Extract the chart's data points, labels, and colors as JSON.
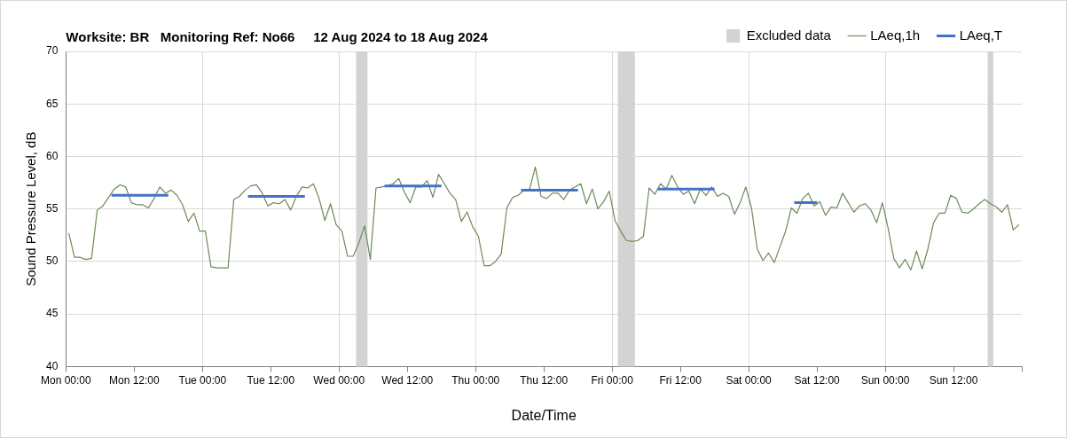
{
  "chart_data": {
    "type": "line",
    "title": "Worksite: BR   Monitoring Ref: No66     12 Aug 2024 to 18 Aug 2024",
    "xlabel": "Date/Time",
    "ylabel": "Sound Pressure Level, dB",
    "xlim": [
      "2024-08-12T00:00",
      "2024-08-19T00:00"
    ],
    "ylim": [
      40,
      70
    ],
    "xticks": [
      {
        "value": "2024-08-12T00:00",
        "label": "Mon 00:00"
      },
      {
        "value": "2024-08-12T12:00",
        "label": "Mon 12:00"
      },
      {
        "value": "2024-08-13T00:00",
        "label": "Tue 00:00"
      },
      {
        "value": "2024-08-13T12:00",
        "label": "Tue 12:00"
      },
      {
        "value": "2024-08-14T00:00",
        "label": "Wed 00:00"
      },
      {
        "value": "2024-08-14T12:00",
        "label": "Wed 12:00"
      },
      {
        "value": "2024-08-15T00:00",
        "label": "Thu 00:00"
      },
      {
        "value": "2024-08-15T12:00",
        "label": "Thu 12:00"
      },
      {
        "value": "2024-08-16T00:00",
        "label": "Fri 00:00"
      },
      {
        "value": "2024-08-16T12:00",
        "label": "Fri 12:00"
      },
      {
        "value": "2024-08-17T00:00",
        "label": "Sat 00:00"
      },
      {
        "value": "2024-08-17T12:00",
        "label": "Sat 12:00"
      },
      {
        "value": "2024-08-18T00:00",
        "label": "Sun 00:00"
      },
      {
        "value": "2024-08-18T12:00",
        "label": "Sun 12:00"
      },
      {
        "value": "2024-08-19T00:00",
        "label": null
      }
    ],
    "yticks": [
      40,
      45,
      50,
      55,
      60,
      65,
      70
    ],
    "grid": true,
    "legend": "top right",
    "marker": "none",
    "line_style": "solid",
    "bands": [
      {
        "axis": "x",
        "from": "2024-08-14T03:00",
        "to": "2024-08-14T05:00",
        "label": "Excluded data",
        "color": "#d3d3d3"
      },
      {
        "axis": "x",
        "from": "2024-08-16T01:00",
        "to": "2024-08-16T04:00",
        "color": "#d3d3d3"
      },
      {
        "axis": "x",
        "from": "2024-08-18T18:00",
        "to": "2024-08-18T19:00",
        "color": "#d3d3d3"
      }
    ],
    "series": [
      {
        "name": "LAeq,1h",
        "color": "#6b8a5a",
        "x": [
          "2024-08-12T00:30",
          "2024-08-12T01:30",
          "2024-08-12T02:30",
          "2024-08-12T03:30",
          "2024-08-12T04:30",
          "2024-08-12T05:30",
          "2024-08-12T06:30",
          "2024-08-12T07:30",
          "2024-08-12T08:30",
          "2024-08-12T09:30",
          "2024-08-12T10:30",
          "2024-08-12T11:30",
          "2024-08-12T12:30",
          "2024-08-12T13:30",
          "2024-08-12T14:30",
          "2024-08-12T15:30",
          "2024-08-12T16:30",
          "2024-08-12T17:30",
          "2024-08-12T18:30",
          "2024-08-12T19:30",
          "2024-08-12T20:30",
          "2024-08-12T21:30",
          "2024-08-12T22:30",
          "2024-08-12T23:30",
          "2024-08-13T00:30",
          "2024-08-13T01:30",
          "2024-08-13T02:30",
          "2024-08-13T03:30",
          "2024-08-13T04:30",
          "2024-08-13T05:30",
          "2024-08-13T06:30",
          "2024-08-13T07:30",
          "2024-08-13T08:30",
          "2024-08-13T09:30",
          "2024-08-13T10:30",
          "2024-08-13T11:30",
          "2024-08-13T12:30",
          "2024-08-13T13:30",
          "2024-08-13T14:30",
          "2024-08-13T15:30",
          "2024-08-13T16:30",
          "2024-08-13T17:30",
          "2024-08-13T18:30",
          "2024-08-13T19:30",
          "2024-08-13T20:30",
          "2024-08-13T21:30",
          "2024-08-13T22:30",
          "2024-08-13T23:30",
          "2024-08-14T00:30",
          "2024-08-14T01:30",
          "2024-08-14T02:30",
          "2024-08-14T03:30",
          "2024-08-14T04:30",
          "2024-08-14T05:30",
          "2024-08-14T06:30",
          "2024-08-14T07:30",
          "2024-08-14T08:30",
          "2024-08-14T09:30",
          "2024-08-14T10:30",
          "2024-08-14T11:30",
          "2024-08-14T12:30",
          "2024-08-14T13:30",
          "2024-08-14T14:30",
          "2024-08-14T15:30",
          "2024-08-14T16:30",
          "2024-08-14T17:30",
          "2024-08-14T18:30",
          "2024-08-14T19:30",
          "2024-08-14T20:30",
          "2024-08-14T21:30",
          "2024-08-14T22:30",
          "2024-08-14T23:30",
          "2024-08-15T00:30",
          "2024-08-15T01:30",
          "2024-08-15T02:30",
          "2024-08-15T03:30",
          "2024-08-15T04:30",
          "2024-08-15T05:30",
          "2024-08-15T06:30",
          "2024-08-15T07:30",
          "2024-08-15T08:30",
          "2024-08-15T09:30",
          "2024-08-15T10:30",
          "2024-08-15T11:30",
          "2024-08-15T12:30",
          "2024-08-15T13:30",
          "2024-08-15T14:30",
          "2024-08-15T15:30",
          "2024-08-15T16:30",
          "2024-08-15T17:30",
          "2024-08-15T18:30",
          "2024-08-15T19:30",
          "2024-08-15T20:30",
          "2024-08-15T21:30",
          "2024-08-15T22:30",
          "2024-08-15T23:30",
          "2024-08-16T00:30",
          "2024-08-16T01:30",
          "2024-08-16T02:30",
          "2024-08-16T03:30",
          "2024-08-16T04:30",
          "2024-08-16T05:30",
          "2024-08-16T06:30",
          "2024-08-16T07:30",
          "2024-08-16T08:30",
          "2024-08-16T09:30",
          "2024-08-16T10:30",
          "2024-08-16T11:30",
          "2024-08-16T12:30",
          "2024-08-16T13:30",
          "2024-08-16T14:30",
          "2024-08-16T15:30",
          "2024-08-16T16:30",
          "2024-08-16T17:30",
          "2024-08-16T18:30",
          "2024-08-16T19:30",
          "2024-08-16T20:30",
          "2024-08-16T21:30",
          "2024-08-16T22:30",
          "2024-08-16T23:30",
          "2024-08-17T00:30",
          "2024-08-17T01:30",
          "2024-08-17T02:30",
          "2024-08-17T03:30",
          "2024-08-17T04:30",
          "2024-08-17T05:30",
          "2024-08-17T06:30",
          "2024-08-17T07:30",
          "2024-08-17T08:30",
          "2024-08-17T09:30",
          "2024-08-17T10:30",
          "2024-08-17T11:30",
          "2024-08-17T12:30",
          "2024-08-17T13:30",
          "2024-08-17T14:30",
          "2024-08-17T15:30",
          "2024-08-17T16:30",
          "2024-08-17T17:30",
          "2024-08-17T18:30",
          "2024-08-17T19:30",
          "2024-08-17T20:30",
          "2024-08-17T21:30",
          "2024-08-17T22:30",
          "2024-08-17T23:30",
          "2024-08-18T00:30",
          "2024-08-18T01:30",
          "2024-08-18T02:30",
          "2024-08-18T03:30",
          "2024-08-18T04:30",
          "2024-08-18T05:30",
          "2024-08-18T06:30",
          "2024-08-18T07:30",
          "2024-08-18T08:30",
          "2024-08-18T09:30",
          "2024-08-18T10:30",
          "2024-08-18T11:30",
          "2024-08-18T12:30",
          "2024-08-18T13:30",
          "2024-08-18T14:30",
          "2024-08-18T15:30",
          "2024-08-18T16:30",
          "2024-08-18T17:30",
          "2024-08-18T18:30",
          "2024-08-18T19:30",
          "2024-08-18T20:30",
          "2024-08-18T21:30",
          "2024-08-18T22:30",
          "2024-08-18T23:30"
        ],
        "values": [
          52.7,
          50.4,
          50.4,
          50.2,
          50.3,
          54.9,
          55.3,
          56.1,
          56.9,
          57.3,
          57.1,
          55.6,
          55.4,
          55.4,
          55.1,
          56.0,
          57.1,
          56.5,
          56.8,
          56.3,
          55.4,
          53.8,
          54.6,
          52.9,
          52.9,
          49.5,
          49.4,
          49.4,
          49.4,
          55.9,
          56.2,
          56.8,
          57.2,
          57.3,
          56.5,
          55.3,
          55.6,
          55.5,
          55.9,
          54.9,
          56.2,
          57.1,
          57.0,
          57.4,
          56.0,
          53.9,
          55.5,
          53.5,
          52.9,
          50.5,
          50.5,
          51.8,
          53.4,
          50.2,
          57.0,
          57.1,
          57.2,
          57.4,
          57.9,
          56.6,
          55.6,
          57.1,
          57.1,
          57.7,
          56.1,
          58.3,
          57.4,
          56.5,
          55.9,
          53.8,
          54.7,
          53.3,
          52.4,
          49.6,
          49.6,
          50.0,
          50.7,
          55.1,
          56.1,
          56.3,
          56.8,
          56.9,
          59.0,
          56.2,
          56.0,
          56.5,
          56.5,
          55.9,
          56.8,
          57.1,
          57.4,
          55.5,
          56.9,
          55.0,
          55.7,
          56.7,
          53.9,
          52.9,
          52.0,
          51.9,
          52.0,
          52.4,
          57.0,
          56.4,
          57.4,
          56.9,
          58.2,
          57.1,
          56.4,
          56.7,
          55.5,
          56.9,
          56.3,
          57.1,
          56.2,
          56.5,
          56.2,
          54.5,
          55.6,
          57.1,
          55.1,
          51.2,
          50.1,
          50.8,
          49.9,
          51.4,
          52.9,
          55.1,
          54.6,
          56.0,
          56.5,
          55.3,
          55.7,
          54.4,
          55.2,
          55.1,
          56.5,
          55.6,
          54.7,
          55.3,
          55.5,
          54.9,
          53.7,
          55.6,
          53.2,
          50.3,
          49.4,
          50.2,
          49.2,
          51.0,
          49.3,
          51.2,
          53.7,
          54.6,
          54.6,
          56.3,
          56.0,
          54.7,
          54.6,
          55.0,
          55.5,
          55.9,
          55.5,
          55.2,
          54.7,
          55.4,
          53.0,
          53.5
        ]
      },
      {
        "name": "LAeq,T",
        "color": "#4472c4",
        "x": [
          "2024-08-12T08:00",
          "2024-08-12T18:00",
          "2024-08-13T01:00",
          "2024-08-13T08:00",
          "2024-08-13T18:00",
          "2024-08-14T01:00",
          "2024-08-14T08:00",
          "2024-08-14T18:00",
          "2024-08-15T01:00",
          "2024-08-15T08:00",
          "2024-08-15T18:00",
          "2024-08-16T01:00",
          "2024-08-16T08:00",
          "2024-08-16T18:00",
          "2024-08-17T01:00",
          "2024-08-17T08:00",
          "2024-08-17T12:00"
        ],
        "values": [
          56.3,
          56.3,
          null,
          56.2,
          56.2,
          null,
          57.2,
          57.2,
          null,
          56.8,
          56.8,
          null,
          56.9,
          56.9,
          null,
          55.6,
          55.6
        ]
      }
    ]
  }
}
